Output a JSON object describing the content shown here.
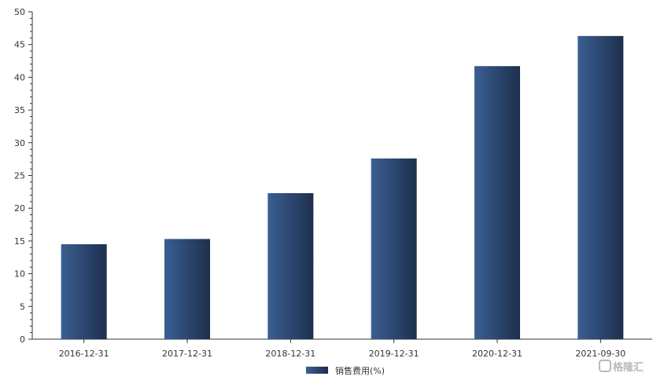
{
  "chart_data": {
    "type": "bar",
    "categories": [
      "2016-12-31",
      "2017-12-31",
      "2018-12-31",
      "2019-12-31",
      "2020-12-31",
      "2021-09-30"
    ],
    "series": [
      {
        "name": "销售费用(%)",
        "values": [
          14.5,
          15.3,
          22.3,
          27.6,
          41.7,
          46.3
        ]
      }
    ],
    "ylim": [
      0,
      50
    ],
    "yticks": [
      0,
      5,
      10,
      15,
      20,
      25,
      30,
      35,
      40,
      45,
      50
    ],
    "grid": false,
    "legend_position": "bottom-center",
    "colors": {
      "bar_light": "#3a5f92",
      "bar_dark": "#1e2f4d",
      "axis": "#333333"
    }
  },
  "watermark": {
    "text": "格隆汇"
  }
}
